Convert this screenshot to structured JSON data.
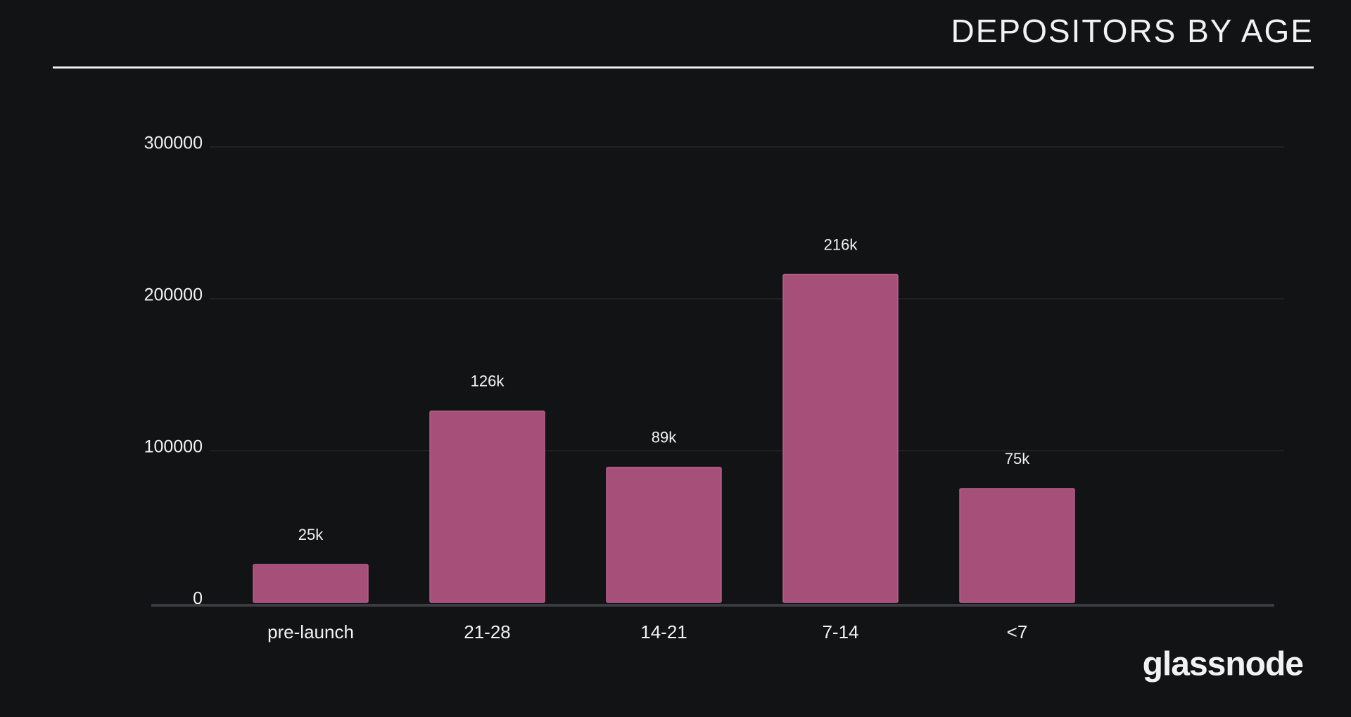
{
  "chart_data": {
    "type": "bar",
    "title": "DEPOSITORS BY AGE",
    "categories": [
      "pre-launch",
      "21-28",
      "14-21",
      "7-14",
      "<7"
    ],
    "values": [
      25000,
      126000,
      89000,
      216000,
      75000
    ],
    "value_labels": [
      "25k",
      "126k",
      "89k",
      "216k",
      "75k"
    ],
    "color": "#a64f79",
    "ylim": [
      0,
      300000
    ],
    "yticks": [
      0,
      100000,
      200000,
      300000
    ],
    "grid": true
  },
  "brand": "glassnode"
}
